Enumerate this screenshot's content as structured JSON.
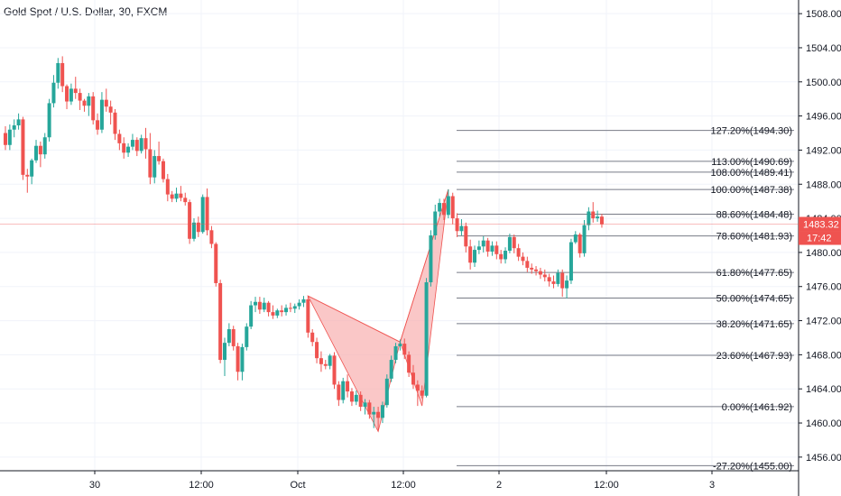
{
  "title": "Gold Spot / U.S. Dollar, 30, FXCM",
  "colors": {
    "up": "#26a69a",
    "down": "#ef5350",
    "fib_line": "#787b86",
    "pattern_fill": "#f8b4b4",
    "pattern_stroke": "#ef5350",
    "grid": "#f0f3fa",
    "axis": "#131722",
    "price_tag": "#ef5350"
  },
  "chart_data": {
    "type": "candlestick",
    "title": "Gold Spot / U.S. Dollar, 30, FXCM",
    "y_axis_ticks": [
      "1456.00",
      "1460.00",
      "1464.00",
      "1468.00",
      "1472.00",
      "1476.00",
      "1480.00",
      "1484.00",
      "1488.00",
      "1492.00",
      "1496.00",
      "1500.00",
      "1504.00",
      "1508.00"
    ],
    "ylim": [
      1454.4,
      1509.6
    ],
    "x_axis_ticks": [
      "30",
      "12:00",
      "Oct",
      "12:00",
      "2",
      "12:00",
      "3"
    ],
    "current_price": "1483.32",
    "countdown": "17:42",
    "fib_levels": [
      {
        "label": "127.20%(1494.30)",
        "price": 1494.3
      },
      {
        "label": "113.00%(1490.69)",
        "price": 1490.69
      },
      {
        "label": "108.00%(1489.41)",
        "price": 1489.41
      },
      {
        "label": "100.00%(1487.38)",
        "price": 1487.38
      },
      {
        "label": "88.60%(1484.48)",
        "price": 1484.48
      },
      {
        "label": "78.60%(1481.93)",
        "price": 1481.93
      },
      {
        "label": "61.80%(1477.65)",
        "price": 1477.65
      },
      {
        "label": "50.00%(1474.65)",
        "price": 1474.65
      },
      {
        "label": "38.20%(1471.65)",
        "price": 1471.65
      },
      {
        "label": "23.60%(1467.93)",
        "price": 1467.93
      },
      {
        "label": "0.00%(1461.92)",
        "price": 1461.92
      },
      {
        "label": "-27.20%(1455.00)",
        "price": 1455.0
      }
    ],
    "pattern_points": [
      {
        "bar": 69,
        "price": 1474.9
      },
      {
        "bar": 85,
        "price": 1459.0
      },
      {
        "bar": 90,
        "price": 1469.5
      },
      {
        "bar": 95,
        "price": 1462.0
      },
      {
        "bar": 101,
        "price": 1487.4
      }
    ],
    "candles": [
      [
        1494.0,
        1494.8,
        1492.0,
        1492.6
      ],
      [
        1492.6,
        1495.0,
        1492.0,
        1494.4
      ],
      [
        1494.4,
        1495.6,
        1493.5,
        1494.9
      ],
      [
        1494.9,
        1496.3,
        1494.4,
        1495.6
      ],
      [
        1495.6,
        1495.9,
        1488.5,
        1489.1
      ],
      [
        1489.1,
        1489.8,
        1487.0,
        1488.9
      ],
      [
        1488.9,
        1491.0,
        1488.0,
        1490.8
      ],
      [
        1490.8,
        1493.2,
        1490.5,
        1492.5
      ],
      [
        1492.5,
        1493.0,
        1490.0,
        1491.5
      ],
      [
        1491.5,
        1494.0,
        1491.0,
        1493.5
      ],
      [
        1493.5,
        1498.0,
        1493.0,
        1497.5
      ],
      [
        1497.5,
        1500.8,
        1497.0,
        1499.9
      ],
      [
        1499.9,
        1502.8,
        1499.2,
        1502.2
      ],
      [
        1502.2,
        1503.0,
        1498.8,
        1499.5
      ],
      [
        1499.5,
        1499.7,
        1496.8,
        1497.7
      ],
      [
        1497.7,
        1499.8,
        1497.3,
        1499.2
      ],
      [
        1499.2,
        1500.6,
        1498.0,
        1498.7
      ],
      [
        1498.7,
        1499.2,
        1496.7,
        1497.8
      ],
      [
        1497.8,
        1498.0,
        1496.5,
        1497.2
      ],
      [
        1497.2,
        1498.7,
        1496.0,
        1498.3
      ],
      [
        1498.3,
        1498.8,
        1495.0,
        1495.5
      ],
      [
        1495.5,
        1496.3,
        1493.8,
        1494.4
      ],
      [
        1494.4,
        1498.8,
        1494.0,
        1497.9
      ],
      [
        1497.9,
        1499.2,
        1496.5,
        1497.1
      ],
      [
        1497.1,
        1497.8,
        1495.0,
        1496.4
      ],
      [
        1496.4,
        1496.8,
        1493.2,
        1493.9
      ],
      [
        1493.9,
        1494.4,
        1492.0,
        1492.8
      ],
      [
        1492.8,
        1493.5,
        1491.0,
        1491.7
      ],
      [
        1491.7,
        1492.8,
        1491.2,
        1492.4
      ],
      [
        1492.4,
        1493.9,
        1492.0,
        1493.2
      ],
      [
        1493.2,
        1493.5,
        1491.3,
        1491.9
      ],
      [
        1491.9,
        1493.8,
        1491.6,
        1493.4
      ],
      [
        1493.4,
        1494.6,
        1491.0,
        1492.1
      ],
      [
        1492.1,
        1494.0,
        1488.0,
        1488.8
      ],
      [
        1488.8,
        1492.0,
        1488.1,
        1491.3
      ],
      [
        1491.3,
        1493.0,
        1490.3,
        1490.7
      ],
      [
        1490.7,
        1491.0,
        1488.2,
        1488.6
      ],
      [
        1488.6,
        1489.2,
        1486.0,
        1486.8
      ],
      [
        1486.8,
        1487.2,
        1485.9,
        1486.3
      ],
      [
        1486.3,
        1487.6,
        1485.9,
        1486.9
      ],
      [
        1486.9,
        1487.8,
        1486.0,
        1486.4
      ],
      [
        1486.4,
        1487.0,
        1485.5,
        1485.9
      ],
      [
        1485.9,
        1486.2,
        1481.0,
        1481.6
      ],
      [
        1481.6,
        1484.0,
        1481.3,
        1483.5
      ],
      [
        1483.5,
        1484.2,
        1481.8,
        1482.4
      ],
      [
        1482.4,
        1486.8,
        1482.2,
        1486.5
      ],
      [
        1486.5,
        1487.5,
        1482.0,
        1482.6
      ],
      [
        1482.6,
        1483.1,
        1480.5,
        1481.0
      ],
      [
        1481.0,
        1481.2,
        1476.0,
        1476.4
      ],
      [
        1476.4,
        1476.8,
        1467.0,
        1467.4
      ],
      [
        1467.4,
        1470.0,
        1465.5,
        1469.4
      ],
      [
        1469.4,
        1471.7,
        1469.0,
        1471.0
      ],
      [
        1471.0,
        1471.4,
        1468.5,
        1469.0
      ],
      [
        1469.0,
        1469.4,
        1465.0,
        1466.0
      ],
      [
        1466.0,
        1469.3,
        1465.0,
        1468.9
      ],
      [
        1468.9,
        1471.7,
        1468.5,
        1471.3
      ],
      [
        1471.3,
        1474.3,
        1471.0,
        1473.8
      ],
      [
        1473.8,
        1474.8,
        1473.0,
        1474.2
      ],
      [
        1474.2,
        1474.8,
        1472.8,
        1473.3
      ],
      [
        1473.3,
        1474.7,
        1473.0,
        1474.1
      ],
      [
        1474.1,
        1474.3,
        1472.5,
        1473.0
      ],
      [
        1473.0,
        1473.8,
        1472.2,
        1472.6
      ],
      [
        1472.6,
        1473.4,
        1472.3,
        1473.2
      ],
      [
        1473.2,
        1473.8,
        1472.5,
        1473.0
      ],
      [
        1473.0,
        1473.9,
        1472.6,
        1473.5
      ],
      [
        1473.5,
        1474.1,
        1473.0,
        1473.4
      ],
      [
        1473.4,
        1474.0,
        1472.9,
        1473.7
      ],
      [
        1473.7,
        1474.5,
        1473.3,
        1474.1
      ],
      [
        1474.1,
        1474.9,
        1473.6,
        1474.5
      ],
      [
        1474.5,
        1474.9,
        1470.0,
        1470.6
      ],
      [
        1470.6,
        1471.0,
        1469.0,
        1469.5
      ],
      [
        1469.5,
        1470.0,
        1467.0,
        1467.6
      ],
      [
        1467.6,
        1468.4,
        1466.0,
        1466.9
      ],
      [
        1466.9,
        1467.4,
        1466.3,
        1466.7
      ],
      [
        1466.7,
        1468.1,
        1466.3,
        1467.9
      ],
      [
        1467.9,
        1468.3,
        1464.0,
        1464.5
      ],
      [
        1464.5,
        1464.9,
        1462.0,
        1462.7
      ],
      [
        1462.7,
        1465.3,
        1462.3,
        1464.9
      ],
      [
        1464.9,
        1465.7,
        1463.0,
        1463.7
      ],
      [
        1463.7,
        1464.1,
        1462.0,
        1462.5
      ],
      [
        1462.5,
        1463.8,
        1462.1,
        1463.3
      ],
      [
        1463.3,
        1463.7,
        1461.4,
        1461.9
      ],
      [
        1461.9,
        1462.8,
        1461.0,
        1462.4
      ],
      [
        1462.4,
        1462.7,
        1460.5,
        1461.0
      ],
      [
        1461.0,
        1461.9,
        1459.4,
        1461.3
      ],
      [
        1461.3,
        1461.9,
        1459.0,
        1460.6
      ],
      [
        1460.6,
        1462.5,
        1460.0,
        1462.1
      ],
      [
        1462.1,
        1465.7,
        1461.8,
        1465.2
      ],
      [
        1465.2,
        1467.9,
        1464.8,
        1467.4
      ],
      [
        1467.4,
        1469.4,
        1467.0,
        1469.0
      ],
      [
        1469.0,
        1469.8,
        1468.5,
        1469.3
      ],
      [
        1469.3,
        1469.9,
        1467.5,
        1468.0
      ],
      [
        1468.0,
        1468.4,
        1465.4,
        1465.9
      ],
      [
        1465.9,
        1466.8,
        1464.0,
        1464.5
      ],
      [
        1464.5,
        1465.0,
        1462.0,
        1463.8
      ],
      [
        1463.8,
        1464.4,
        1462.9,
        1463.2
      ],
      [
        1463.2,
        1477.0,
        1463.0,
        1476.5
      ],
      [
        1476.5,
        1482.6,
        1476.0,
        1482.0
      ],
      [
        1482.0,
        1485.6,
        1481.5,
        1484.8
      ],
      [
        1484.8,
        1486.3,
        1484.2,
        1485.8
      ],
      [
        1485.8,
        1486.3,
        1483.8,
        1484.4
      ],
      [
        1484.4,
        1487.4,
        1484.0,
        1486.6
      ],
      [
        1486.6,
        1487.0,
        1483.3,
        1484.0
      ],
      [
        1484.0,
        1484.6,
        1481.8,
        1482.5
      ],
      [
        1482.5,
        1483.9,
        1482.0,
        1483.1
      ],
      [
        1483.1,
        1483.5,
        1480.0,
        1480.7
      ],
      [
        1480.7,
        1481.5,
        1478.0,
        1478.8
      ],
      [
        1478.8,
        1480.8,
        1478.3,
        1480.3
      ],
      [
        1480.3,
        1481.4,
        1479.8,
        1480.7
      ],
      [
        1480.7,
        1481.9,
        1480.0,
        1481.4
      ],
      [
        1481.4,
        1481.7,
        1479.5,
        1480.1
      ],
      [
        1480.1,
        1481.3,
        1479.6,
        1480.8
      ],
      [
        1480.8,
        1481.3,
        1479.2,
        1479.8
      ],
      [
        1479.8,
        1480.3,
        1478.7,
        1479.2
      ],
      [
        1479.2,
        1480.6,
        1478.7,
        1480.2
      ],
      [
        1480.2,
        1482.2,
        1479.9,
        1481.8
      ],
      [
        1481.8,
        1482.1,
        1479.9,
        1480.5
      ],
      [
        1480.5,
        1481.0,
        1479.0,
        1479.5
      ],
      [
        1479.5,
        1480.0,
        1478.5,
        1479.0
      ],
      [
        1479.0,
        1479.5,
        1477.7,
        1478.2
      ],
      [
        1478.2,
        1478.7,
        1477.5,
        1478.0
      ],
      [
        1478.0,
        1478.4,
        1477.3,
        1477.8
      ],
      [
        1477.8,
        1478.2,
        1476.9,
        1477.4
      ],
      [
        1477.4,
        1478.0,
        1476.6,
        1477.1
      ],
      [
        1477.1,
        1477.5,
        1476.0,
        1476.6
      ],
      [
        1476.6,
        1477.3,
        1475.8,
        1476.3
      ],
      [
        1476.3,
        1478.0,
        1476.0,
        1477.6
      ],
      [
        1477.6,
        1478.0,
        1474.8,
        1475.8
      ],
      [
        1475.8,
        1477.3,
        1474.6,
        1476.7
      ],
      [
        1476.7,
        1481.6,
        1476.3,
        1481.2
      ],
      [
        1481.2,
        1482.5,
        1481.0,
        1482.1
      ],
      [
        1482.1,
        1482.3,
        1479.4,
        1479.9
      ],
      [
        1479.9,
        1483.8,
        1479.5,
        1483.2
      ],
      [
        1483.2,
        1485.3,
        1482.6,
        1484.8
      ],
      [
        1484.8,
        1485.9,
        1483.5,
        1484.0
      ],
      [
        1484.0,
        1484.9,
        1483.6,
        1484.2
      ],
      [
        1484.2,
        1484.5,
        1482.9,
        1483.3
      ]
    ]
  }
}
